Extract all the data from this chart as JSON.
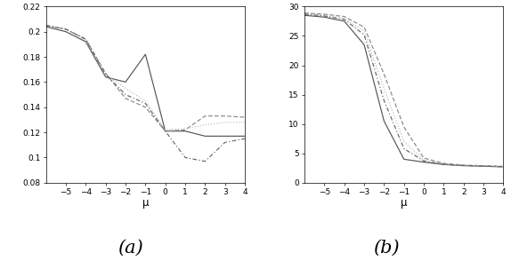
{
  "x": [
    -6,
    -5,
    -4,
    -3,
    -2,
    -1,
    0,
    1,
    2,
    3,
    4
  ],
  "subplot_a": {
    "solid": [
      0.204,
      0.2,
      0.192,
      0.164,
      0.16,
      0.182,
      0.121,
      0.121,
      0.117,
      0.117,
      0.117
    ],
    "dashed": [
      0.205,
      0.202,
      0.194,
      0.167,
      0.147,
      0.14,
      0.121,
      0.122,
      0.133,
      0.133,
      0.132
    ],
    "dotted": [
      0.205,
      0.202,
      0.193,
      0.166,
      0.155,
      0.145,
      0.122,
      0.123,
      0.126,
      0.128,
      0.128
    ],
    "dashdot": [
      0.205,
      0.202,
      0.194,
      0.166,
      0.15,
      0.143,
      0.121,
      0.1,
      0.097,
      0.112,
      0.115
    ],
    "ylim": [
      0.08,
      0.22
    ],
    "yticks": [
      0.08,
      0.1,
      0.12,
      0.14,
      0.16,
      0.18,
      0.2,
      0.22
    ],
    "xticks": [
      -5,
      -4,
      -3,
      -2,
      -1,
      0,
      1,
      2,
      3,
      4
    ],
    "xlabel": "μ",
    "label": "(a)"
  },
  "subplot_b": {
    "solid": [
      28.5,
      28.2,
      27.5,
      23.5,
      10.5,
      4.0,
      3.5,
      3.1,
      2.9,
      2.8,
      2.7
    ],
    "dashed": [
      28.9,
      28.7,
      28.3,
      26.5,
      18.5,
      9.5,
      4.2,
      3.3,
      3.0,
      2.9,
      2.8
    ],
    "dotted": [
      28.8,
      28.5,
      28.0,
      25.8,
      16.0,
      7.0,
      3.9,
      3.2,
      2.95,
      2.85,
      2.75
    ],
    "dashdot": [
      28.7,
      28.4,
      27.8,
      25.2,
      14.0,
      5.8,
      3.7,
      3.15,
      2.92,
      2.82,
      2.72
    ],
    "ylim": [
      0,
      30
    ],
    "yticks": [
      0,
      5,
      10,
      15,
      20,
      25,
      30
    ],
    "xticks": [
      -5,
      -4,
      -3,
      -2,
      -1,
      0,
      1,
      2,
      3,
      4
    ],
    "xlabel": "μ",
    "label": "(b)"
  },
  "color_solid": "#555555",
  "color_dashed": "#888888",
  "color_dotted": "#bbbbbb",
  "color_dashdot": "#666666",
  "linewidth": 0.85,
  "figsize": [
    5.74,
    2.94
  ],
  "dpi": 100,
  "label_fontsize": 15
}
